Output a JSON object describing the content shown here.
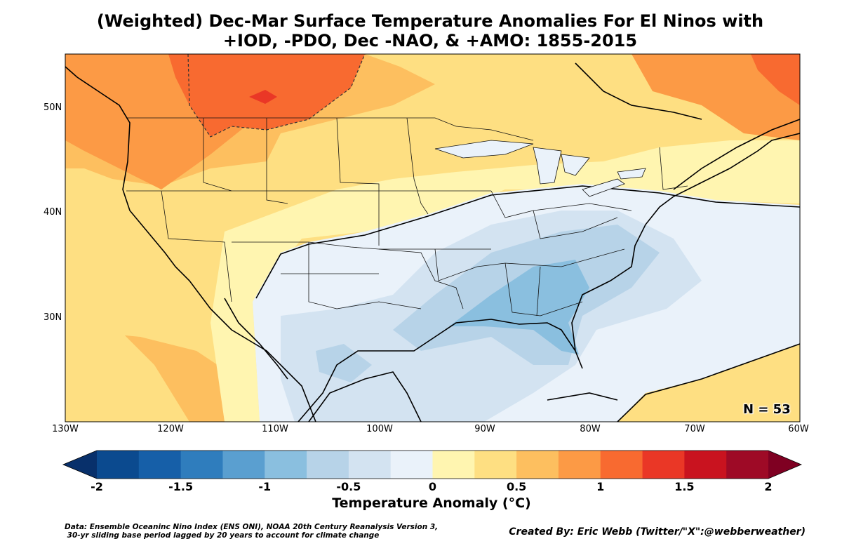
{
  "title": {
    "line1": "(Weighted) Dec-Mar Surface Temperature Anomalies For El Ninos with",
    "line2": "+IOD, -PDO, Dec -NAO, & +AMO: 1855-2015"
  },
  "map": {
    "lat_labels": [
      "50N",
      "40N",
      "30N"
    ],
    "lon_labels": [
      "130W",
      "120W",
      "110W",
      "100W",
      "90W",
      "80W",
      "70W",
      "60W"
    ],
    "extent": {
      "lon": [
        -130,
        -60
      ],
      "lat": [
        20,
        55
      ]
    },
    "sample_size": "N = 53"
  },
  "colorbar": {
    "label": "Temperature Anomaly (°C)",
    "ticks": [
      "-2",
      "-1.5",
      "-1",
      "-0.5",
      "0",
      "0.5",
      "1",
      "1.5",
      "2"
    ],
    "levels": [
      -2,
      -1.75,
      -1.5,
      -1.25,
      -1,
      -0.75,
      -0.5,
      -0.25,
      0,
      0.25,
      0.5,
      0.75,
      1,
      1.25,
      1.5,
      1.75,
      2
    ],
    "colors": [
      "#08306b",
      "#0b4a8f",
      "#165fa8",
      "#2f7dbd",
      "#5a9fd0",
      "#8abfdf",
      "#b7d3e8",
      "#d3e3f1",
      "#eaf2fa",
      "#fff5b0",
      "#fedf82",
      "#fdbf5f",
      "#fc9a45",
      "#f86a30",
      "#ea3726",
      "#c9131f",
      "#9e0a26",
      "#7f0022"
    ]
  },
  "footer": {
    "source_line1": "Data: Ensemble Oceaninc Nino Index (ENS ONI), NOAA 20th Century Reanalysis Version 3,",
    "source_line2": " 30-yr sliding base period lagged by 20 years to account for climate change",
    "credit": "Created By: Eric Webb (Twitter/\"X\":@webberweather)"
  }
}
